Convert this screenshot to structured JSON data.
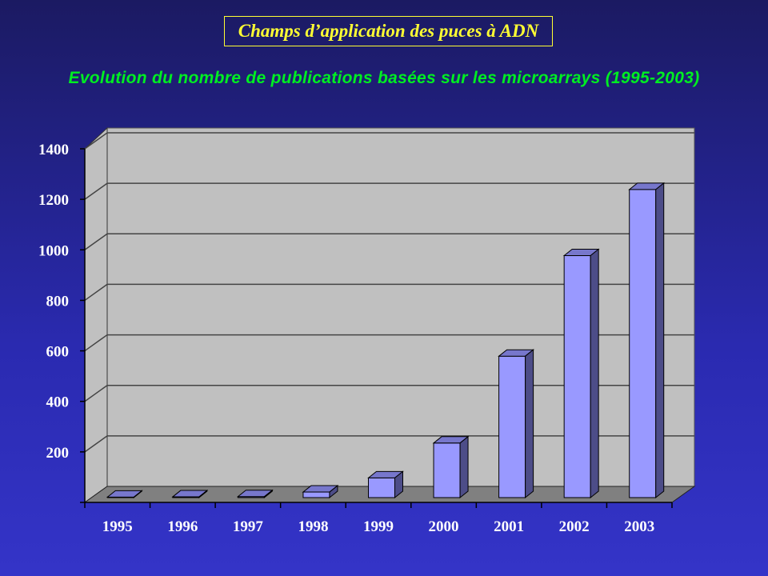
{
  "slide": {
    "title": "Champs d’application des puces à ADN",
    "subtitle": "Evolution du nombre de publications basées sur les microarrays (1995-2003)"
  },
  "chart_data": {
    "type": "bar",
    "title": "Evolution du nombre de publications basées sur les microarrays (1995-2003)",
    "categories": [
      "1995",
      "1996",
      "1997",
      "1998",
      "1999",
      "2000",
      "2001",
      "2002",
      "2003"
    ],
    "values": [
      2,
      3,
      4,
      22,
      78,
      216,
      560,
      958,
      1220
    ],
    "ylim": [
      0,
      1400
    ],
    "yticks": [
      200,
      400,
      600,
      800,
      1000,
      1200,
      1400
    ],
    "xlabel": "",
    "ylabel": "",
    "grid": true,
    "colors": {
      "front": "#9999ff",
      "top": "#7777cc",
      "side": "#4d4d88",
      "wall": "#c0c0c0",
      "floor": "#808080"
    }
  }
}
